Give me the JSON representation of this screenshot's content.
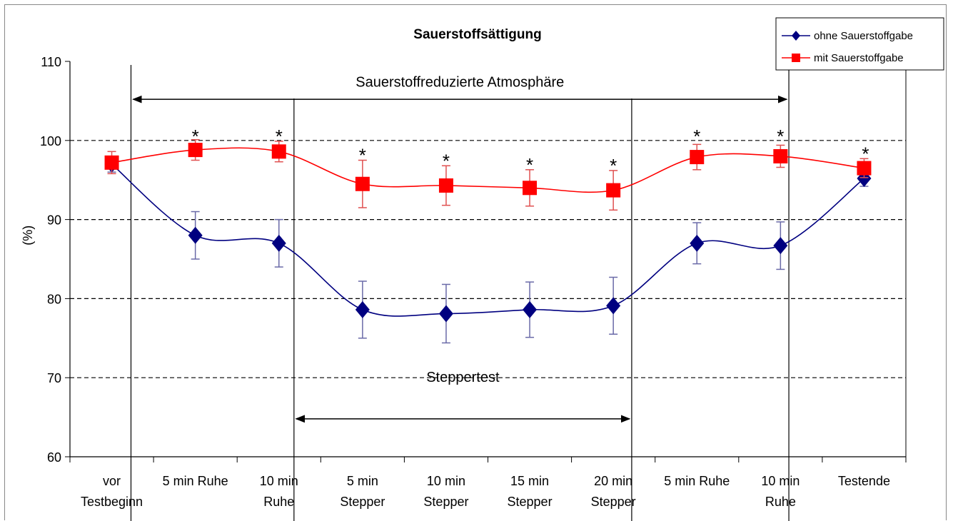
{
  "chart_data": {
    "type": "line",
    "title": "Sauerstoffsättigung",
    "ylabel": "(%)",
    "xlabel": "",
    "ylim": [
      60,
      110
    ],
    "yticks": [
      60,
      70,
      80,
      90,
      100,
      110
    ],
    "grid": "horizontal dashed at 70, 80, 90, 100",
    "legend_position": "top-right",
    "categories": [
      [
        "vor",
        "Testbeginn"
      ],
      [
        "5 min Ruhe"
      ],
      [
        "10 min",
        "Ruhe"
      ],
      [
        "5 min",
        "Stepper"
      ],
      [
        "10 min",
        "Stepper"
      ],
      [
        "15 min",
        "Stepper"
      ],
      [
        "20 min",
        "Stepper"
      ],
      [
        "5 min Ruhe"
      ],
      [
        "10 min",
        "Ruhe"
      ],
      [
        "Testende"
      ]
    ],
    "series": [
      {
        "name": "ohne Sauerstoffgabe",
        "color": "#000080",
        "marker": "diamond",
        "values": [
          97.0,
          88.0,
          87.0,
          78.6,
          78.1,
          78.6,
          79.1,
          87.0,
          86.7,
          95.2
        ],
        "error": [
          1.0,
          3.0,
          3.0,
          3.6,
          3.7,
          3.5,
          3.6,
          2.6,
          3.0,
          1.0
        ]
      },
      {
        "name": "mit Sauerstoffgabe",
        "color": "#ff0000",
        "marker": "square",
        "values": [
          97.2,
          98.8,
          98.6,
          94.5,
          94.3,
          94.0,
          93.7,
          97.9,
          98.0,
          96.5
        ],
        "error": [
          1.4,
          1.3,
          1.3,
          3.0,
          2.5,
          2.3,
          2.5,
          1.6,
          1.4,
          1.2
        ]
      }
    ],
    "significance_marks": [
      {
        "category_index": 1,
        "label": "*"
      },
      {
        "category_index": 2,
        "label": "*"
      },
      {
        "category_index": 3,
        "label": "*"
      },
      {
        "category_index": 4,
        "label": "*"
      },
      {
        "category_index": 5,
        "label": "*"
      },
      {
        "category_index": 6,
        "label": "*"
      },
      {
        "category_index": 7,
        "label": "*"
      },
      {
        "category_index": 8,
        "label": "*"
      },
      {
        "category_index": 9,
        "label": "*"
      }
    ],
    "annotations": {
      "reduced_atmosphere": "Sauerstoffreduzierte Atmosphäre",
      "steppertest": "Steppertest"
    }
  }
}
